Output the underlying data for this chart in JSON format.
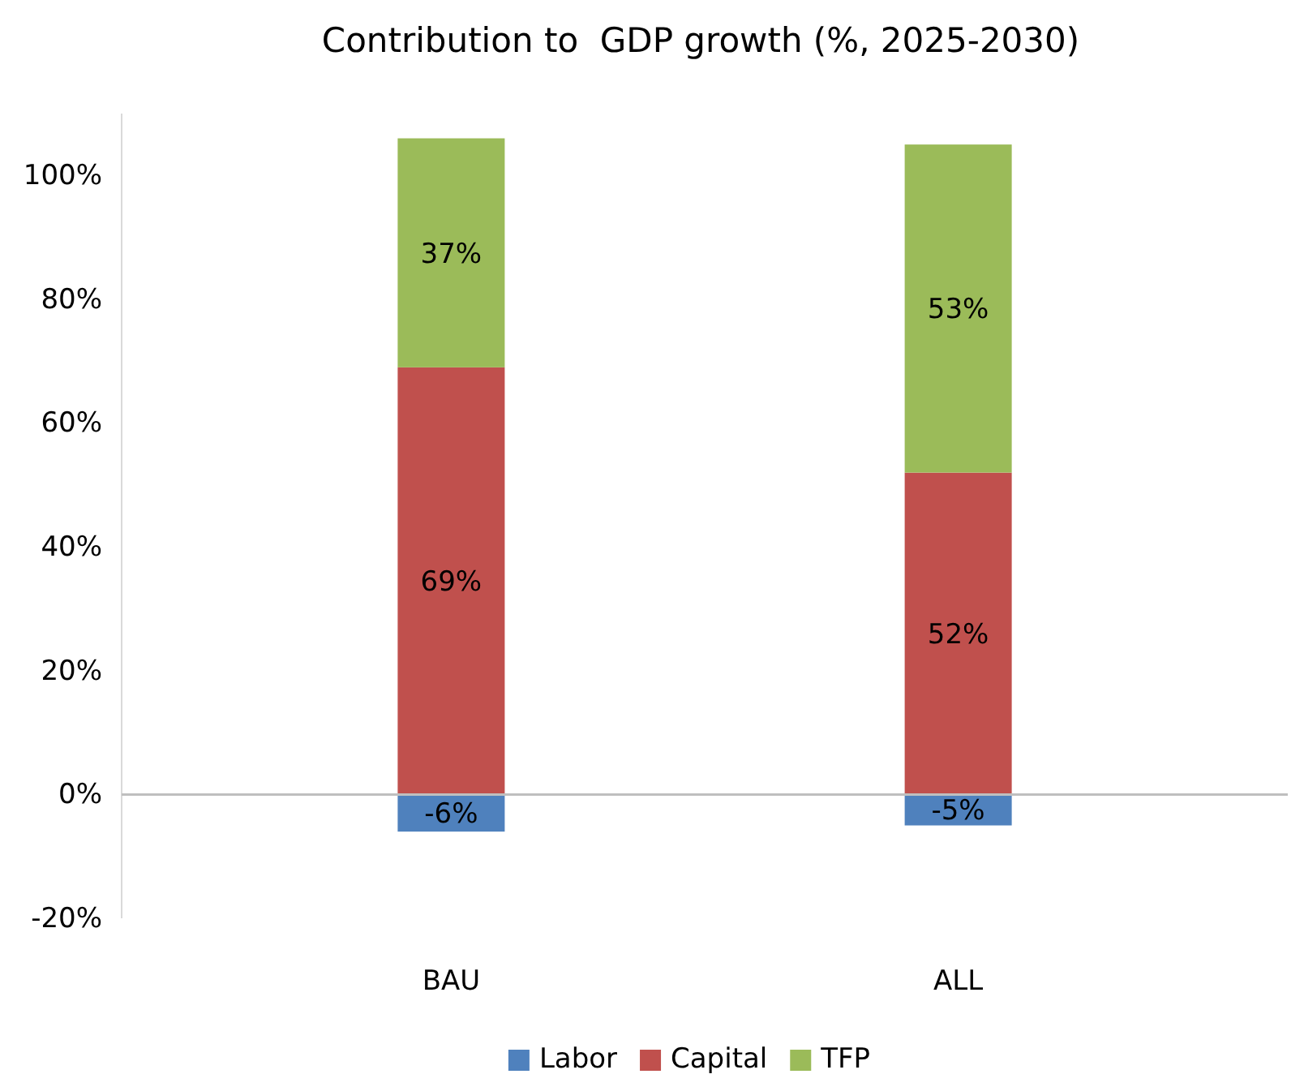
{
  "chart_data": {
    "type": "bar",
    "title": "Contribution to  GDP growth (%, 2025-2030)",
    "stacked": true,
    "categories": [
      "BAU",
      "ALL"
    ],
    "series": [
      {
        "name": "Labor",
        "color": "#4f81bd",
        "values": [
          -6,
          -5
        ],
        "value_labels": [
          "-6%",
          "-5%"
        ]
      },
      {
        "name": "Capital",
        "color": "#c0504d",
        "values": [
          69,
          52
        ],
        "value_labels": [
          "69%",
          "52%"
        ]
      },
      {
        "name": "TFP",
        "color": "#9bbb59",
        "values": [
          37,
          53
        ],
        "value_labels": [
          "37%",
          "53%"
        ]
      }
    ],
    "ylim": [
      -20,
      110
    ],
    "yticks": [
      {
        "value": -20,
        "label": "-20%"
      },
      {
        "value": 0,
        "label": "0%"
      },
      {
        "value": 20,
        "label": "20%"
      },
      {
        "value": 40,
        "label": "40%"
      },
      {
        "value": 60,
        "label": "60%"
      },
      {
        "value": 80,
        "label": "80%"
      },
      {
        "value": 100,
        "label": "100%"
      }
    ],
    "legend": "bottom"
  }
}
